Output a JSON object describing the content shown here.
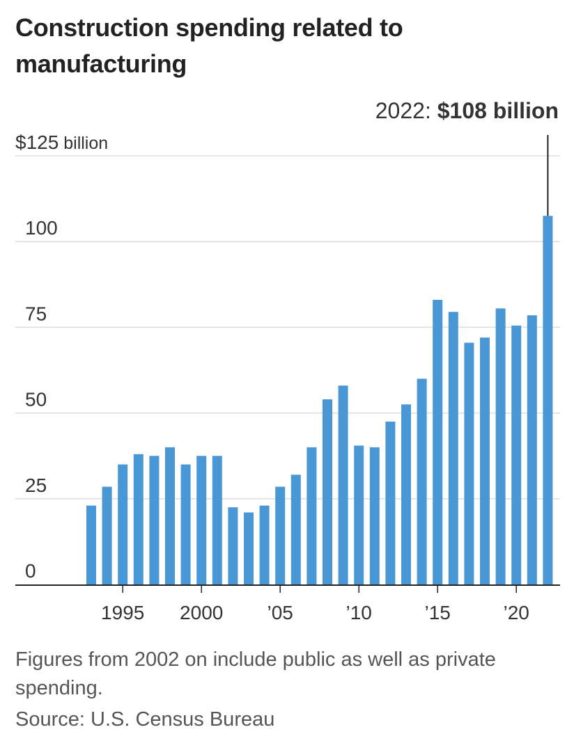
{
  "title": "Construction spending related to manufacturing",
  "footnote": "Figures from 2002 on include public as well as private spending.",
  "source": "Source: U.S. Census Bureau",
  "colors": {
    "bar": "#4a97d6",
    "grid": "#dddddd",
    "axis": "#222222",
    "text": "#333333"
  },
  "chart_data": {
    "type": "bar",
    "title": "Construction spending related to manufacturing",
    "xlabel": "",
    "ylabel": "",
    "ylim": [
      0,
      125
    ],
    "y_ticks": [
      0,
      25,
      50,
      75,
      100,
      125
    ],
    "y_tick_labels": [
      "0",
      "25",
      "50",
      "75",
      "100",
      "$125 billion"
    ],
    "x_ticks": [
      1995,
      2000,
      2005,
      2010,
      2015,
      2020
    ],
    "x_tick_labels": [
      "1995",
      "2000",
      "’05",
      "’10",
      "’15",
      "’20"
    ],
    "grid": true,
    "categories": [
      1993,
      1994,
      1995,
      1996,
      1997,
      1998,
      1999,
      2000,
      2001,
      2002,
      2003,
      2004,
      2005,
      2006,
      2007,
      2008,
      2009,
      2010,
      2011,
      2012,
      2013,
      2014,
      2015,
      2016,
      2017,
      2018,
      2019,
      2020,
      2021,
      2022
    ],
    "values": [
      23,
      28.5,
      35,
      38,
      37.5,
      40,
      35,
      37.5,
      37.5,
      22.5,
      21,
      23,
      28.5,
      32,
      40,
      54,
      58,
      40.5,
      40,
      47.5,
      52.5,
      60,
      83,
      79.5,
      70.5,
      72,
      80.5,
      75.5,
      78.5,
      107.5
    ],
    "annotation": {
      "year": 2022,
      "label_prefix": "2022: ",
      "label_value": "$108 billion"
    }
  }
}
